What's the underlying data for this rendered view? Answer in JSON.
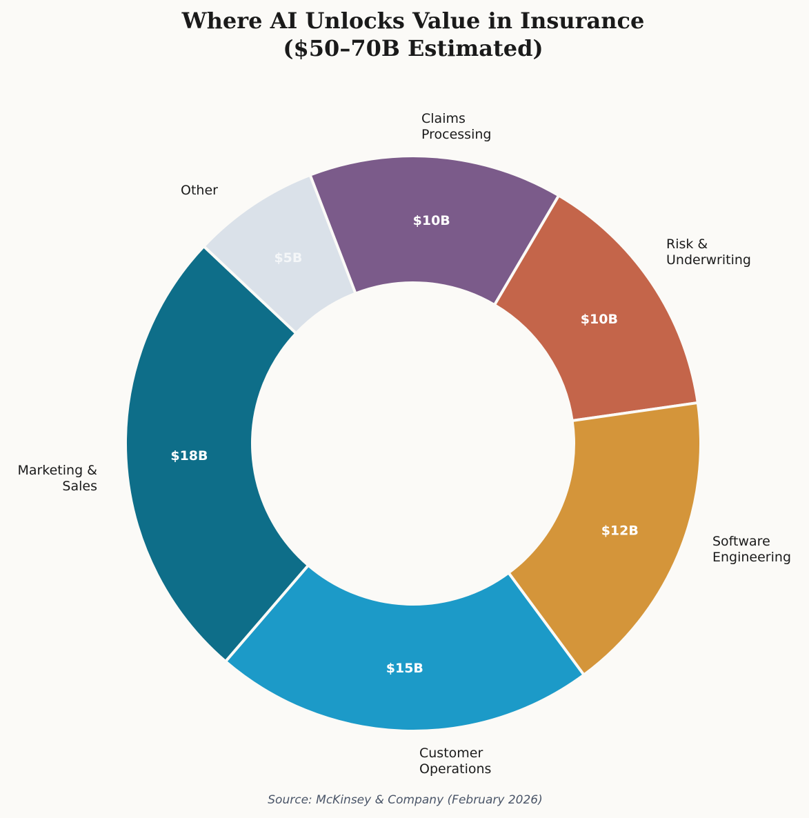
{
  "chart_data": {
    "type": "pie",
    "variant": "donut",
    "title": "Where AI Unlocks Value in Insurance\n($50–70B Estimated)",
    "title_lines": [
      "Where AI Unlocks Value in Insurance",
      "($50–70B Estimated)"
    ],
    "unit": "$B",
    "categories": [
      "Claims Processing",
      "Risk & Underwriting",
      "Software Engineering",
      "Customer Operations",
      "Marketing & Sales",
      "Other"
    ],
    "values": [
      10,
      10,
      12,
      15,
      18,
      5
    ],
    "value_labels": [
      "$10B",
      "$10B",
      "$12B",
      "$15B",
      "$18B",
      "$5B"
    ],
    "colors": [
      "#7b5b8a",
      "#c4654a",
      "#d4953a",
      "#1c9ac8",
      "#0e6e89",
      "#dae1e9"
    ],
    "annotation": "Source: McKinsey & Company (February 2026)",
    "legend": "none"
  },
  "slices": [
    {
      "name": "claims",
      "label_lines": [
        "Claims",
        "Processing"
      ],
      "value": "$10B",
      "color": "#7b5b8a",
      "value_color": "#ffffff"
    },
    {
      "name": "risk",
      "label_lines": [
        "Risk &",
        "Underwriting"
      ],
      "value": "$10B",
      "color": "#c4654a",
      "value_color": "#ffffff"
    },
    {
      "name": "software",
      "label_lines": [
        "Software",
        "Engineering"
      ],
      "value": "$12B",
      "color": "#d4953a",
      "value_color": "#ffffff"
    },
    {
      "name": "customer",
      "label_lines": [
        "Customer",
        "Operations"
      ],
      "value": "$15B",
      "color": "#1c9ac8",
      "value_color": "#ffffff"
    },
    {
      "name": "marketing",
      "label_lines": [
        "Marketing &",
        "Sales"
      ],
      "value": "$18B",
      "color": "#0e6e89",
      "value_color": "#ffffff"
    },
    {
      "name": "other",
      "label_lines": [
        "Other"
      ],
      "value": "$5B",
      "color": "#dae1e9",
      "value_color": "#f4f6f8"
    }
  ],
  "title": {
    "line1": "Where AI Unlocks Value in Insurance",
    "line2": "($50–70B Estimated)"
  },
  "source": "Source: McKinsey & Company (February 2026)"
}
